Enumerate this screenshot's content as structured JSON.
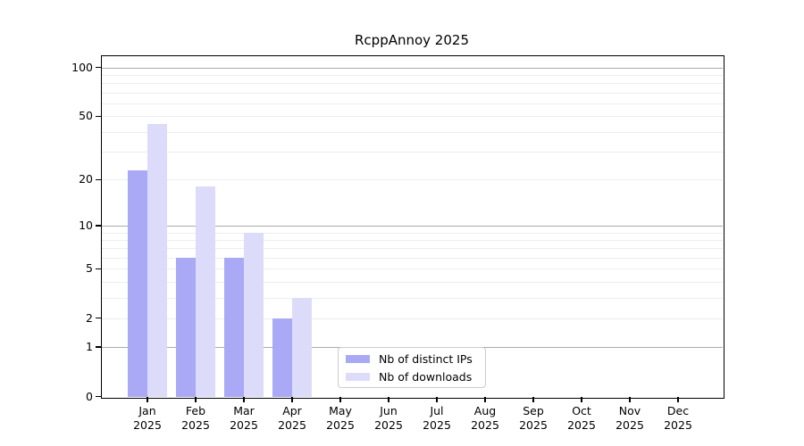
{
  "chart_data": {
    "type": "bar",
    "title": "RcppAnnoy 2025",
    "yscale": "log1p",
    "ylim": [
      0,
      118
    ],
    "yticks": [
      0,
      1,
      2,
      5,
      10,
      20,
      50,
      100
    ],
    "gridlines_major": [
      1,
      10,
      100
    ],
    "gridlines_minor": [
      2,
      3,
      4,
      5,
      6,
      7,
      8,
      9,
      20,
      30,
      40,
      50,
      60,
      70,
      80,
      90
    ],
    "categories": [
      "Jan 2025",
      "Feb 2025",
      "Mar 2025",
      "Apr 2025",
      "May 2025",
      "Jun 2025",
      "Jul 2025",
      "Aug 2025",
      "Sep 2025",
      "Oct 2025",
      "Nov 2025",
      "Dec 2025"
    ],
    "x_tick_months": [
      "Jan",
      "Feb",
      "Mar",
      "Apr",
      "May",
      "Jun",
      "Jul",
      "Aug",
      "Sep",
      "Oct",
      "Nov",
      "Dec"
    ],
    "x_tick_year": "2025",
    "series": [
      {
        "name": "Nb of distinct IPs",
        "color": "#a9a9f5",
        "values": [
          23,
          6,
          6,
          2,
          0,
          0,
          0,
          0,
          0,
          0,
          0,
          0
        ]
      },
      {
        "name": "Nb of downloads",
        "color": "#dcdcfa",
        "values": [
          45,
          18,
          9,
          3,
          0,
          0,
          0,
          0,
          0,
          0,
          0,
          0
        ]
      }
    ],
    "legend_position": "bottom-center-inside"
  }
}
